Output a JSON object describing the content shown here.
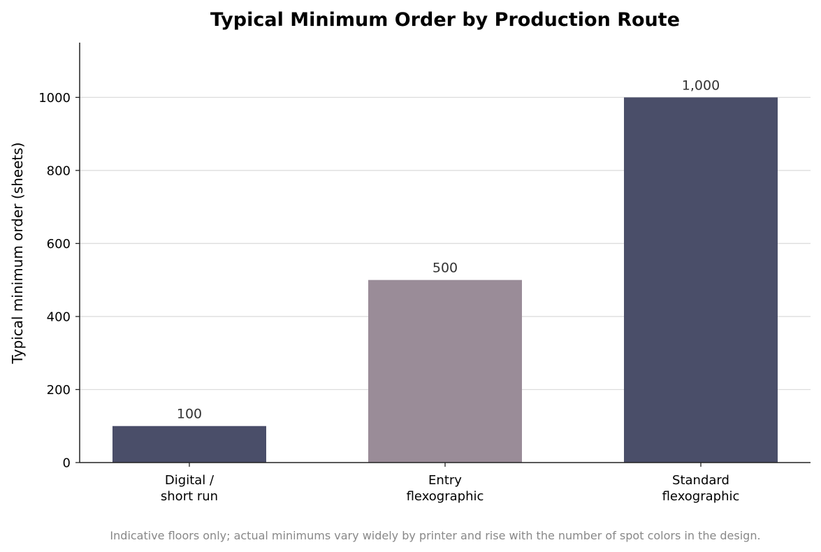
{
  "chart_data": {
    "type": "bar",
    "title": "Typical Minimum Order by Production Route",
    "xlabel": "",
    "ylabel": "Typical minimum order (sheets)",
    "categories": [
      [
        "Digital /",
        "short run"
      ],
      [
        "Entry",
        "flexographic"
      ],
      [
        "Standard",
        "flexographic"
      ]
    ],
    "values": [
      100,
      500,
      1000
    ],
    "data_labels": [
      "100",
      "500",
      "1,000"
    ],
    "bar_colors": [
      "#4a4e69",
      "#9a8c98",
      "#4a4e69"
    ],
    "ylim": [
      0,
      1150
    ],
    "yticks": [
      0,
      200,
      400,
      600,
      800,
      1000
    ],
    "grid": "horizontal",
    "legend": "none",
    "footnote": "Indicative floors only; actual minimums vary widely by printer and rise with the number of spot colors in the design."
  }
}
